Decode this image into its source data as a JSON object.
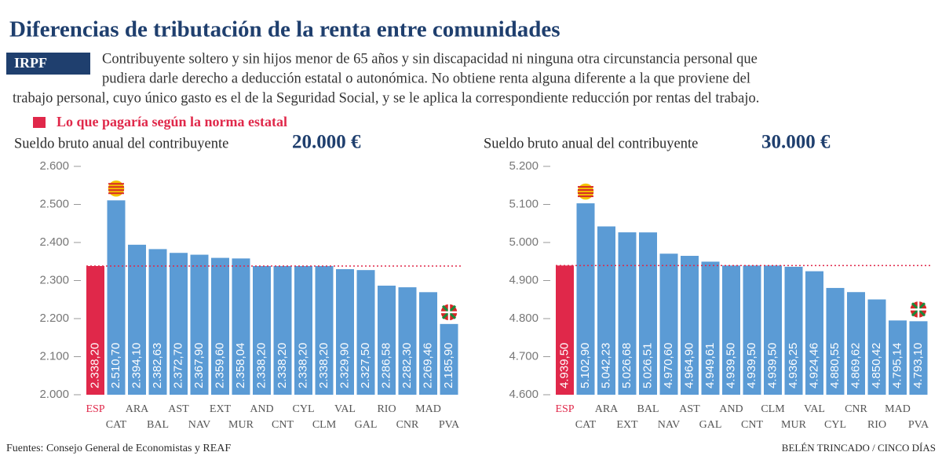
{
  "title": "Diferencias de tributación de la renta entre comunidades",
  "tag": "IRPF",
  "description": [
    "Contribuyente soltero y sin hijos menor de 65 años y sin discapacidad ni ninguna otra circunstancia personal que",
    "pudiera darle derecho a deducción estatal o autonómica. No obtiene renta alguna diferente a la que proviene del",
    "trabajo personal, cuyo único gasto es el de la Seguridad Social, y se le aplica la correspondiente reducción por rentas del trabajo."
  ],
  "legend": "Lo que pagaría según la norma estatal",
  "source": "Fuentes: Consejo General de Economistas y REAF",
  "credit": "BELÉN TRINCADO / CINCO DÍAS",
  "chart_data": [
    {
      "type": "bar",
      "subtitle": "Sueldo bruto anual del contribuyente",
      "salary": "20.000 €",
      "categories": [
        "ESP",
        "CAT",
        "ARA",
        "BAL",
        "AST",
        "NAV",
        "EXT",
        "MUR",
        "AND",
        "CNT",
        "CYL",
        "CLM",
        "VAL",
        "GAL",
        "RIO",
        "CNR",
        "MAD",
        "PVA"
      ],
      "values": [
        2338.2,
        2510.7,
        2394.1,
        2382.63,
        2372.7,
        2367.9,
        2359.6,
        2358.04,
        2338.2,
        2338.2,
        2338.2,
        2338.2,
        2329.9,
        2327.5,
        2286.58,
        2282.3,
        2269.46,
        2185.9
      ],
      "value_labels": [
        "2.338,20",
        "2.510,70",
        "2.394,10",
        "2.382,63",
        "2.372,70",
        "2.367,90",
        "2.359,60",
        "2.358,04",
        "2.338,20",
        "2.338,20",
        "2.338,20",
        "2.338,20",
        "2.329,90",
        "2.327,50",
        "2.286,58",
        "2.282,30",
        "2.269,46",
        "2.185,90"
      ],
      "color": "#5b9bd5",
      "highlight_color": "#e0284a",
      "ylim": [
        2000,
        2600
      ],
      "yticks": [
        {
          "value": 2000,
          "label": "2.000"
        },
        {
          "value": 2100,
          "label": "2.100"
        },
        {
          "value": 2200,
          "label": "2.200"
        },
        {
          "value": 2300,
          "label": "2.300"
        },
        {
          "value": 2400,
          "label": "2.400"
        },
        {
          "value": 2500,
          "label": "2.500"
        },
        {
          "value": 2600,
          "label": "2.600"
        }
      ]
    },
    {
      "type": "bar",
      "subtitle": "Sueldo bruto anual del contribuyente",
      "salary": "30.000 €",
      "categories": [
        "ESP",
        "CAT",
        "ARA",
        "EXT",
        "BAL",
        "NAV",
        "AST",
        "GAL",
        "AND",
        "CNT",
        "CLM",
        "MUR",
        "VAL",
        "CYL",
        "CNR",
        "RIO",
        "MAD",
        "PVA"
      ],
      "values": [
        4939.5,
        5102.9,
        5042.23,
        5026.68,
        5026.51,
        4970.6,
        4964.9,
        4949.61,
        4939.5,
        4939.5,
        4939.5,
        4936.25,
        4924.46,
        4880.55,
        4869.62,
        4850.42,
        4795.14,
        4793.1
      ],
      "value_labels": [
        "4.939,50",
        "5.102,90",
        "5.042,23",
        "5.026,68",
        "5.026,51",
        "4.970,60",
        "4.964,90",
        "4.949,61",
        "4.939,50",
        "4.939,50",
        "4.939,50",
        "4.936,25",
        "4.924,46",
        "4.880,55",
        "4.869,62",
        "4.850,42",
        "4.795,14",
        "4.793,10"
      ],
      "color": "#5b9bd5",
      "highlight_color": "#e0284a",
      "ylim": [
        4600,
        5200
      ],
      "yticks": [
        {
          "value": 4600,
          "label": "4.600"
        },
        {
          "value": 4700,
          "label": "4.700"
        },
        {
          "value": 4800,
          "label": "4.800"
        },
        {
          "value": 4900,
          "label": "4.900"
        },
        {
          "value": 5000,
          "label": "5.000"
        },
        {
          "value": 5100,
          "label": "5.100"
        },
        {
          "value": 5200,
          "label": "5.200"
        }
      ]
    }
  ]
}
